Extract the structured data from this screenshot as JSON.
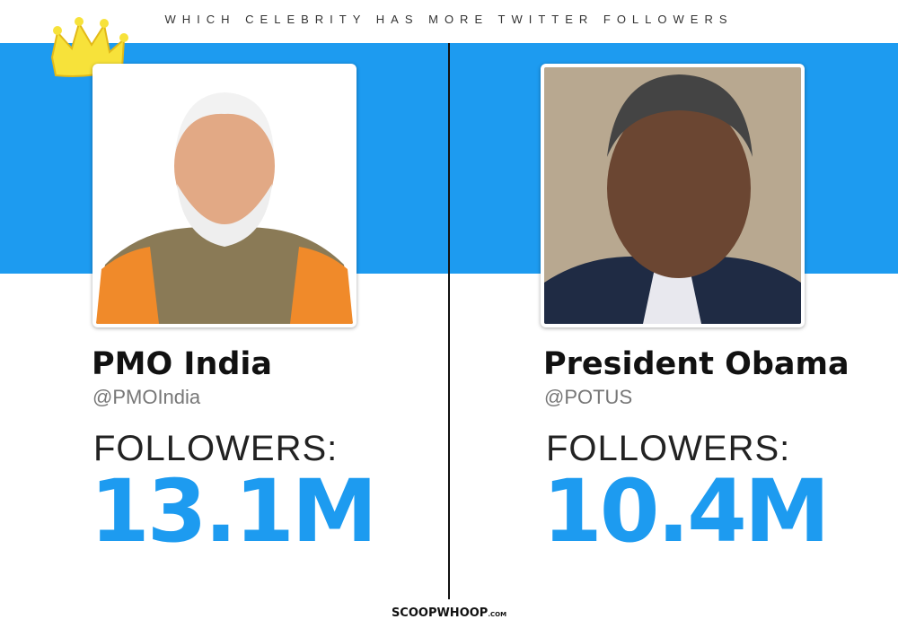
{
  "header": {
    "title": "WHICH CELEBRITY HAS MORE TWITTER FOLLOWERS"
  },
  "cards": [
    {
      "name": "PMO India",
      "handle": "@PMOIndia",
      "label": "FOLLOWERS:",
      "value": "13.1M"
    },
    {
      "name": "President Obama",
      "handle": "@POTUS",
      "label": "FOLLOWERS:",
      "value": "10.4M"
    }
  ],
  "footer": {
    "brand": "SCOOPWHOOP",
    "suffix": ".COM"
  }
}
